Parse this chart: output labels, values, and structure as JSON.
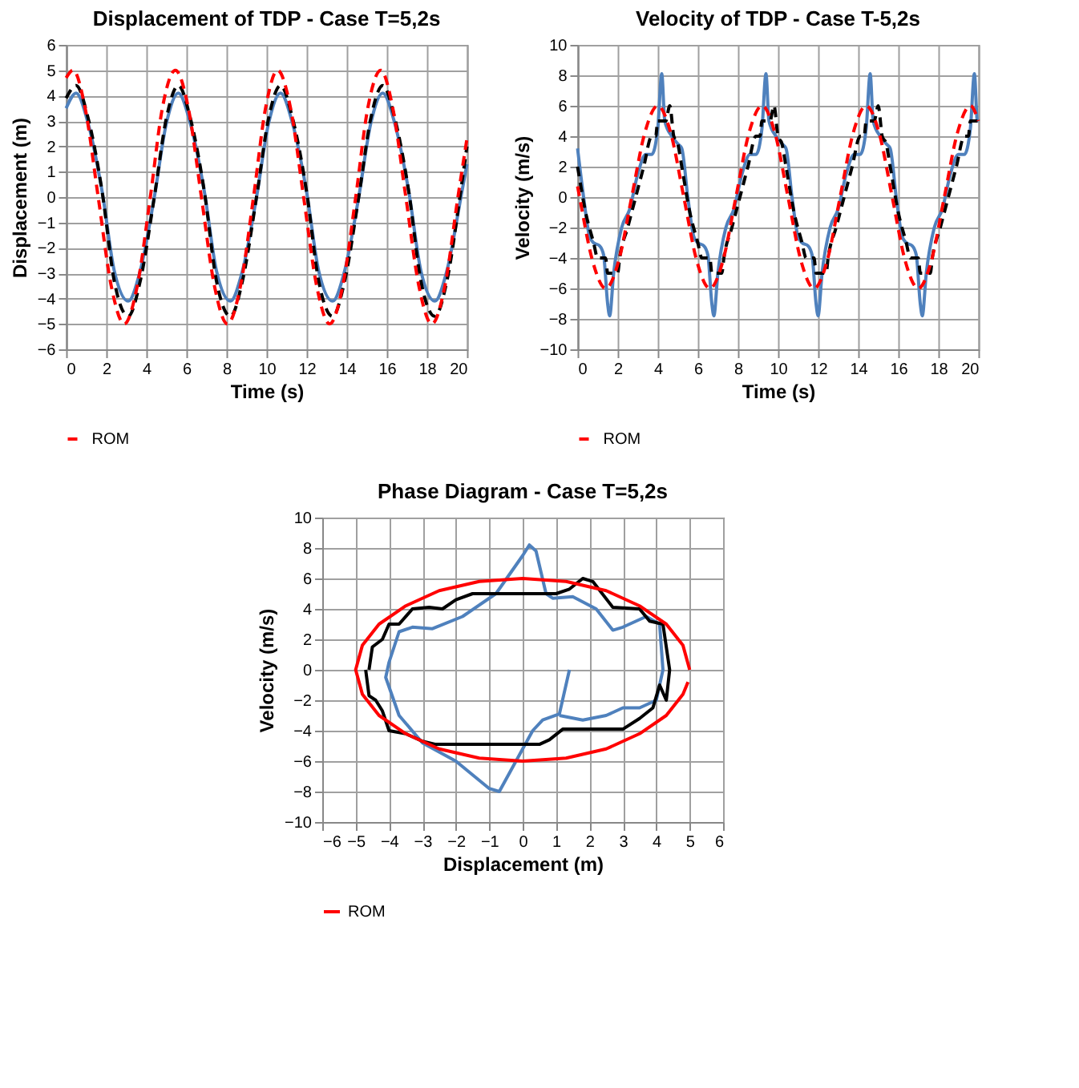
{
  "chart_data": [
    {
      "type": "line",
      "title": "Displacement of TDP - Case T=5,2s",
      "xlabel": "Time (s)",
      "ylabel": "Displacement (m)",
      "xlim": [
        0,
        20
      ],
      "xticks": [
        0,
        2,
        4,
        6,
        8,
        10,
        12,
        14,
        16,
        18,
        20
      ],
      "ylim": [
        -6,
        6
      ],
      "yticks": [
        -6,
        -5,
        -4,
        -3,
        -2,
        -1,
        0,
        1,
        2,
        3,
        4,
        5,
        6
      ],
      "grid": true,
      "legend": "bottom",
      "series": [
        {
          "color": "#4f81bd",
          "line_style": "solid",
          "x": [
            0,
            0.5,
            1.1,
            1.8,
            2.4,
            3.1,
            3.7,
            4.4,
            5.0,
            5.6,
            6.2,
            6.9,
            7.5,
            8.2,
            8.8,
            9.5,
            10.1,
            10.7,
            11.3,
            12.0,
            12.6,
            13.3,
            13.9,
            14.6,
            15.2,
            15.8,
            16.4,
            17.1,
            17.7,
            18.4,
            19.0,
            19.7,
            20
          ],
          "values": [
            3.5,
            4.1,
            2.9,
            0.2,
            -2.9,
            -4.1,
            -2.9,
            0,
            2.9,
            4.1,
            2.9,
            0.2,
            -2.9,
            -4.1,
            -2.9,
            0,
            2.9,
            4.1,
            2.9,
            0.2,
            -2.9,
            -4.1,
            -2.9,
            0,
            2.9,
            4.1,
            2.9,
            0.2,
            -2.9,
            -4.1,
            -2.9,
            0,
            1.3
          ]
        },
        {
          "color": "#000000",
          "line_style": "dashed",
          "x": [
            0,
            0.5,
            1.1,
            1.8,
            2.4,
            3.1,
            3.7,
            4.4,
            5.0,
            5.6,
            6.2,
            6.9,
            7.5,
            8.2,
            8.8,
            9.5,
            10.1,
            10.7,
            11.3,
            12.0,
            12.6,
            13.3,
            13.9,
            14.6,
            15.2,
            15.8,
            16.4,
            17.1,
            17.7,
            18.4,
            19.0,
            19.7,
            20
          ],
          "values": [
            3.9,
            4.4,
            3.1,
            0.2,
            -3.3,
            -4.7,
            -3.3,
            0,
            3.1,
            4.4,
            3.1,
            0.2,
            -3.3,
            -4.7,
            -3.3,
            0,
            3.1,
            4.4,
            3.1,
            0.2,
            -3.3,
            -4.7,
            -3.3,
            0,
            3.1,
            4.4,
            3.1,
            0.2,
            -3.3,
            -4.7,
            -3.3,
            0.3,
            2.0
          ]
        },
        {
          "name": "ROM",
          "color": "#ff0000",
          "line_style": "dashed",
          "x": [
            0,
            0.35,
            0.95,
            1.6,
            2.25,
            2.9,
            3.55,
            4.2,
            4.8,
            5.45,
            6.1,
            6.75,
            7.4,
            8.05,
            8.7,
            9.35,
            9.95,
            10.55,
            11.2,
            11.85,
            12.5,
            13.15,
            13.8,
            14.45,
            15.05,
            15.7,
            16.3,
            16.95,
            17.6,
            18.25,
            18.9,
            19.55,
            20
          ],
          "values": [
            4.7,
            5,
            3.5,
            0,
            -3.5,
            -5,
            -3.5,
            0,
            3.5,
            5,
            3.5,
            0,
            -3.5,
            -5,
            -3.5,
            0,
            3.5,
            5,
            3.5,
            0,
            -3.5,
            -5,
            -3.5,
            0,
            3.5,
            5,
            3.5,
            0,
            -3.5,
            -5,
            -3.5,
            0,
            2.3
          ]
        }
      ]
    },
    {
      "type": "line",
      "title": "Velocity of TDP - Case T-5,2s",
      "xlabel": "Time (s)",
      "ylabel": "Velocity  (m/s)",
      "xlim": [
        0,
        20
      ],
      "xticks": [
        0,
        2,
        4,
        6,
        8,
        10,
        12,
        14,
        16,
        18,
        20
      ],
      "ylim": [
        -10,
        10
      ],
      "yticks": [
        -10,
        -8,
        -6,
        -4,
        -2,
        0,
        2,
        4,
        6,
        8,
        10
      ],
      "grid": true,
      "legend": "bottom",
      "series": [
        {
          "color": "#4f81bd",
          "line_style": "solid",
          "x": [
            0,
            0.3,
            0.6,
            0.8,
            1.1,
            1.3,
            1.5,
            1.6,
            1.8,
            2.2,
            2.6,
            3.0,
            3.4,
            3.7,
            4.0,
            4.2,
            4.35,
            4.7,
            5.0,
            5.2,
            5.5,
            5.8,
            6.0,
            6.3,
            6.5,
            6.7,
            6.8,
            7.0,
            7.4,
            7.8,
            8.2,
            8.6,
            8.9,
            9.2,
            9.4,
            9.55,
            9.9,
            10.2,
            10.4,
            10.7,
            11.0,
            11.2,
            11.5,
            11.7,
            11.9,
            12.0,
            12.2,
            12.6,
            13.0,
            13.4,
            13.8,
            14.1,
            14.4,
            14.6,
            14.75,
            15.1,
            15.4,
            15.6,
            15.9,
            16.2,
            16.4,
            16.7,
            16.9,
            17.1,
            17.2,
            17.4,
            17.8,
            18.2,
            18.6,
            19.0,
            19.3,
            19.6,
            19.8,
            19.95,
            20
          ],
          "values": [
            3.2,
            0,
            -2.6,
            -3,
            -3.2,
            -3.8,
            -7,
            -7.8,
            -5,
            -2,
            -0.8,
            1.5,
            2.8,
            2.8,
            4.5,
            8.1,
            5,
            4,
            3.5,
            3.2,
            0,
            -2.6,
            -3,
            -3.2,
            -3.8,
            -7,
            -7.8,
            -5,
            -2,
            -0.8,
            1.5,
            2.8,
            2.8,
            4.5,
            8.1,
            5,
            4,
            3.5,
            3.2,
            0,
            -2.6,
            -3,
            -3.2,
            -3.8,
            -7,
            -7.8,
            -5,
            -2,
            -0.8,
            1.5,
            2.8,
            2.8,
            4.5,
            8.1,
            5,
            4,
            3.5,
            3.2,
            0,
            -2.6,
            -3,
            -3.2,
            -3.8,
            -7,
            -7.8,
            -5,
            -2,
            -0.8,
            1.5,
            2.8,
            2.8,
            4.5,
            8.1,
            5,
            5
          ]
        },
        {
          "color": "#000000",
          "line_style": "dashed",
          "x": [
            0,
            0.4,
            0.8,
            1.0,
            1.4,
            1.5,
            2.0,
            2.1,
            2.5,
            2.9,
            3.3,
            3.7,
            3.9,
            4.0,
            4.4,
            4.6,
            4.8,
            5.0,
            5.2,
            5.6,
            6.0,
            6.2,
            6.6,
            6.7,
            7.2,
            7.3,
            7.7,
            8.1,
            8.5,
            8.9,
            9.1,
            9.2,
            9.6,
            9.8,
            10.0,
            10.2,
            10.4,
            10.8,
            11.2,
            11.4,
            11.8,
            11.9,
            12.4,
            12.5,
            12.9,
            13.3,
            13.7,
            14.1,
            14.3,
            14.4,
            14.8,
            15.0,
            15.2,
            15.4,
            15.6,
            16.0,
            16.4,
            16.6,
            17.0,
            17.1,
            17.6,
            17.7,
            18.1,
            18.5,
            18.9,
            19.3,
            19.5,
            19.6,
            20.0
          ],
          "values": [
            2,
            -1,
            -3,
            -4,
            -4,
            -5,
            -5,
            -4,
            -2,
            0,
            2,
            4,
            4,
            5,
            5,
            6,
            4,
            3.5,
            2,
            -1,
            -3,
            -4,
            -4,
            -5,
            -5,
            -4,
            -2,
            0,
            2,
            4,
            4,
            5,
            5,
            6,
            4,
            3.5,
            2,
            -1,
            -3,
            -4,
            -4,
            -5,
            -5,
            -4,
            -2,
            0,
            2,
            4,
            4,
            5,
            5,
            6,
            4,
            3.5,
            2,
            -1,
            -3,
            -4,
            -4,
            -5,
            -5,
            -4,
            -2,
            0,
            2,
            4,
            4,
            5,
            5
          ]
        },
        {
          "name": "ROM",
          "color": "#ff0000",
          "line_style": "dashed",
          "x": [
            0,
            0.1,
            0.75,
            1.4,
            2.05,
            2.7,
            3.35,
            4.0,
            4.65,
            5.3,
            5.95,
            6.6,
            7.25,
            7.9,
            8.55,
            9.2,
            9.85,
            10.5,
            11.15,
            11.8,
            12.45,
            13.1,
            13.75,
            14.4,
            15.05,
            15.7,
            16.35,
            17.0,
            17.65,
            18.3,
            18.95,
            19.6,
            20.0
          ],
          "values": [
            0.7,
            0,
            -4.2,
            -6,
            -4.2,
            0,
            4.2,
            6,
            4.2,
            0,
            -4.2,
            -6,
            -4.2,
            0,
            4.2,
            6,
            4.2,
            0,
            -4.2,
            -6,
            -4.2,
            0,
            4.2,
            6,
            4.2,
            0,
            -4.2,
            -6,
            -4.2,
            0,
            4.2,
            6,
            5
          ]
        }
      ]
    },
    {
      "type": "line",
      "title": "Phase Diagram - Case T=5,2s",
      "xlabel": "Displacement (m)",
      "ylabel": "Velocity  (m/s)",
      "xlim": [
        -6,
        6
      ],
      "xticks": [
        -6,
        -5,
        -4,
        -3,
        -2,
        -1,
        0,
        1,
        2,
        3,
        4,
        5,
        6
      ],
      "ylim": [
        -10,
        10
      ],
      "yticks": [
        -10,
        -8,
        -6,
        -4,
        -2,
        0,
        2,
        4,
        6,
        8,
        10
      ],
      "grid": true,
      "legend": "bottom",
      "series": [
        {
          "color": "#4f81bd",
          "line_style": "solid",
          "x": [
            1.4,
            1.1,
            0.6,
            0.3,
            -0.2,
            -0.7,
            -1,
            -2,
            -3,
            -3.7,
            -4.1,
            -4,
            -3.7,
            -3.3,
            -2.7,
            -1.8,
            -0.8,
            0,
            0.2,
            0.4,
            0.7,
            0.9,
            1.5,
            2.2,
            2.7,
            3,
            3.7,
            4.1,
            4.2,
            4,
            3.5,
            3,
            2.5,
            1.8,
            1.1
          ],
          "values": [
            0,
            -2.9,
            -3.3,
            -4,
            -6,
            -8,
            -7.8,
            -6,
            -4.8,
            -3,
            -0.5,
            0.5,
            2.5,
            2.8,
            2.7,
            3.5,
            5,
            7.5,
            8.2,
            7.8,
            5,
            4.7,
            4.8,
            4,
            2.6,
            2.8,
            3.5,
            3,
            0,
            -2,
            -2.5,
            -2.5,
            -3,
            -3.3,
            -3
          ]
        },
        {
          "color": "#000000",
          "line_style": "solid",
          "x": [
            -4.6,
            -4.5,
            -4.2,
            -4,
            -3.7,
            -3.3,
            -2.8,
            -2.4,
            -2,
            -1.5,
            1,
            1.4,
            1.8,
            2.1,
            2.7,
            3.5,
            3.8,
            4.2,
            4.4,
            4.3,
            4.1,
            3.9,
            3.5,
            3,
            1.2,
            0.8,
            0.5,
            -2.6,
            -3,
            -3.5,
            -4,
            -4.2,
            -4.4,
            -4.6,
            -4.7
          ],
          "values": [
            0,
            1.5,
            2,
            3,
            3,
            4,
            4.1,
            4,
            4.6,
            5,
            5,
            5.3,
            6,
            5.8,
            4.1,
            4,
            3.2,
            3,
            0,
            -2,
            -1,
            -2.5,
            -3.2,
            -3.9,
            -3.9,
            -4.6,
            -4.9,
            -4.9,
            -4.7,
            -4.2,
            -4,
            -2.7,
            -2,
            -1.7,
            0
          ]
        },
        {
          "name": "ROM",
          "color": "#ff0000",
          "line_style": "solid",
          "x": [
            5,
            4.8,
            4.3,
            3.5,
            2.5,
            1.3,
            0,
            -1.3,
            -2.5,
            -3.5,
            -4.3,
            -4.8,
            -5,
            -4.8,
            -4.3,
            -3.5,
            -2.5,
            -1.3,
            0,
            1.3,
            2.5,
            3.5,
            4.3,
            4.8,
            4.95
          ],
          "values": [
            0,
            1.6,
            3,
            4.2,
            5.2,
            5.8,
            6,
            5.8,
            5.2,
            4.2,
            3,
            1.6,
            0,
            -1.6,
            -3,
            -4.2,
            -5.2,
            -5.8,
            -6,
            -5.8,
            -5.2,
            -4.2,
            -3,
            -1.6,
            -0.8
          ]
        }
      ]
    }
  ]
}
